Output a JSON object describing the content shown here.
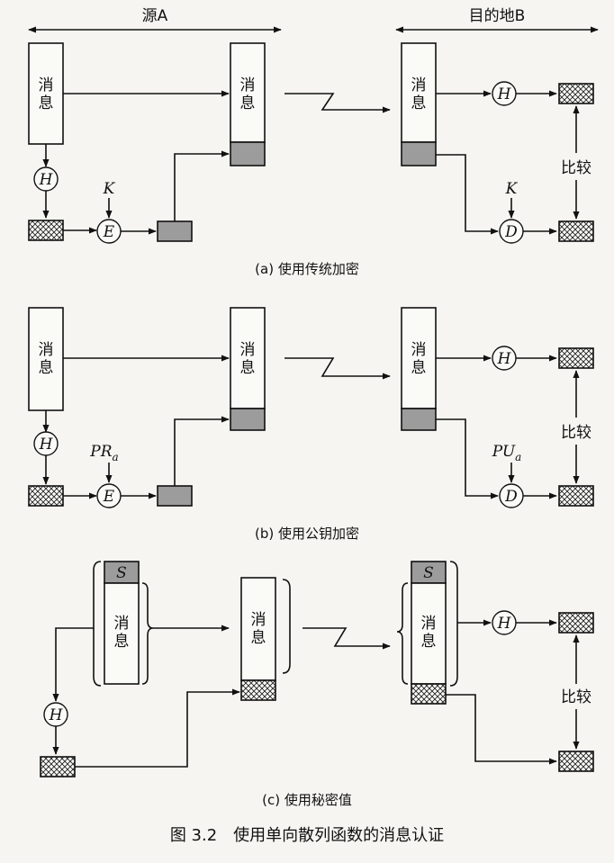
{
  "header": {
    "source": "源A",
    "dest": "目的地B"
  },
  "message": "消息",
  "ops": {
    "hash": "H",
    "encrypt": "E",
    "decrypt": "D",
    "secret": "S"
  },
  "keys": {
    "k": "K",
    "pr": "PR",
    "pr_sub": "a",
    "pu": "PU",
    "pu_sub": "a"
  },
  "compare": "比较",
  "captions": {
    "a": "(a) 使用传统加密",
    "b": "(b) 使用公钥加密",
    "c": "(c) 使用秘密值"
  },
  "figure_title": "图 3.2　使用单向散列函数的消息认证"
}
